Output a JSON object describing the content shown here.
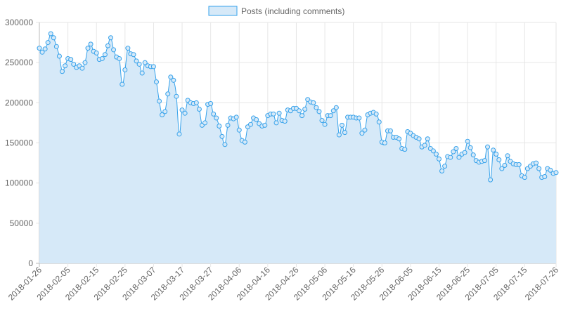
{
  "chart_data": {
    "type": "area",
    "legend": {
      "position": "top-center",
      "label": "Posts (including comments)"
    },
    "colors": {
      "line": "#36a2eb",
      "fill": "#d6e9f8",
      "grid": "#e6e6e6",
      "axis": "#bbbbbb",
      "text": "#666666"
    },
    "grid": true,
    "ylim": [
      0,
      300000
    ],
    "y_ticks": [
      "0",
      "50000",
      "100000",
      "150000",
      "200000",
      "250000",
      "300000"
    ],
    "x_range": [
      "2018-01-26",
      "2018-07-26"
    ],
    "x_tick_labels": [
      "2018-01-26",
      "2018-02-05",
      "2018-02-15",
      "2018-02-25",
      "2018-03-07",
      "2018-03-17",
      "2018-03-27",
      "2018-04-06",
      "2018-04-16",
      "2018-04-26",
      "2018-05-06",
      "2018-05-16",
      "2018-05-26",
      "2018-06-05",
      "2018-06-15",
      "2018-06-25",
      "2018-07-05",
      "2018-07-15",
      "2018-07-26"
    ],
    "series": [
      {
        "name": "Posts (including comments)",
        "x_start": "2018-01-26",
        "step_days": 1,
        "values": [
          268000,
          263000,
          267000,
          275000,
          286000,
          281000,
          270000,
          258000,
          239000,
          246000,
          255000,
          254000,
          248000,
          244000,
          246000,
          243000,
          250000,
          268000,
          273000,
          264000,
          262000,
          254000,
          255000,
          260000,
          271000,
          281000,
          266000,
          257000,
          255000,
          223000,
          241000,
          268000,
          261000,
          260000,
          252000,
          248000,
          237000,
          250000,
          246000,
          245000,
          245000,
          226000,
          202000,
          185000,
          189000,
          211000,
          232000,
          228000,
          208000,
          161000,
          191000,
          187000,
          203000,
          200000,
          199000,
          200000,
          192000,
          172000,
          175000,
          198000,
          199000,
          186000,
          181000,
          171000,
          158000,
          148000,
          172000,
          181000,
          180000,
          182000,
          166000,
          153000,
          151000,
          170000,
          173000,
          181000,
          179000,
          174000,
          171000,
          172000,
          184000,
          186000,
          186000,
          175000,
          187000,
          178000,
          177000,
          191000,
          190000,
          193000,
          193000,
          190000,
          184000,
          192000,
          204000,
          201000,
          200000,
          194000,
          189000,
          178000,
          173000,
          184000,
          184000,
          190000,
          194000,
          160000,
          172000,
          163000,
          182000,
          182000,
          182000,
          181000,
          181000,
          162000,
          166000,
          185000,
          187000,
          188000,
          186000,
          176000,
          151000,
          150000,
          165000,
          165000,
          157000,
          157000,
          155000,
          143000,
          142000,
          164000,
          162000,
          159000,
          157000,
          155000,
          145000,
          147000,
          155000,
          143000,
          140000,
          136000,
          130000,
          115000,
          121000,
          133000,
          132000,
          139000,
          143000,
          132000,
          136000,
          138000,
          152000,
          144000,
          135000,
          128000,
          126000,
          127000,
          128000,
          145000,
          104000,
          141000,
          136000,
          129000,
          118000,
          122000,
          134000,
          127000,
          124000,
          123000,
          123000,
          109000,
          107000,
          118000,
          121000,
          124000,
          125000,
          118000,
          107000,
          108000,
          118000,
          116000,
          112000,
          113000
        ]
      }
    ]
  }
}
